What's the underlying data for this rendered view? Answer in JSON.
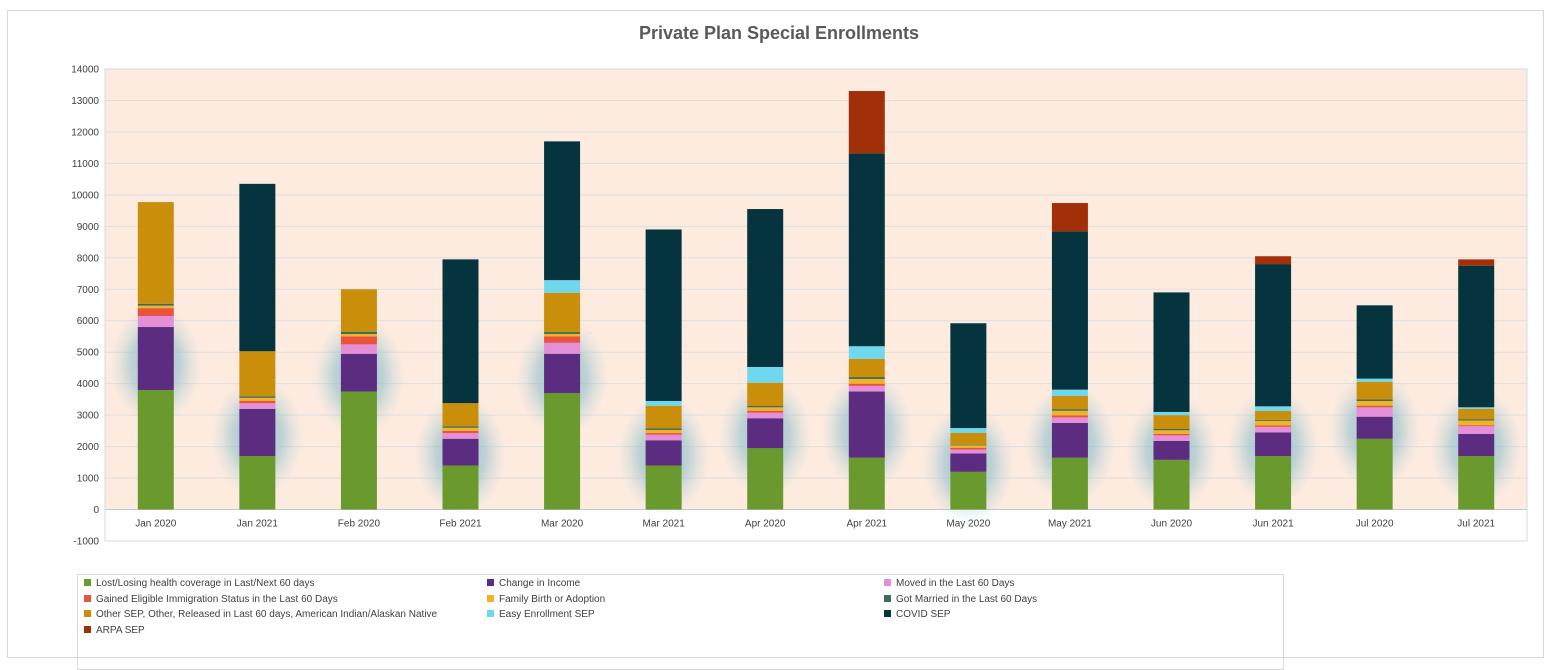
{
  "chart_data": {
    "type": "bar",
    "stacked": true,
    "title": "Private Plan Special Enrollments",
    "xlabel": "",
    "ylabel": "",
    "ylim": [
      -1000,
      14000
    ],
    "yticks": [
      -1000,
      0,
      1000,
      2000,
      3000,
      4000,
      5000,
      6000,
      7000,
      8000,
      9000,
      10000,
      11000,
      12000,
      13000,
      14000
    ],
    "grid": true,
    "legend_position": "bottom",
    "categories": [
      "Jan 2020",
      "Jan 2021",
      "Feb 2020",
      "Feb 2021",
      "Mar 2020",
      "Mar 2021",
      "Apr 2020",
      "Apr 2021",
      "May 2020",
      "May 2021",
      "Jun 2020",
      "Jun 2021",
      "Jul 2020",
      "Jul 2021"
    ],
    "series": [
      {
        "name": "Lost/Losing health coverage in Last/Next 60 days",
        "color": "#6a9a2e",
        "values": [
          3800,
          1700,
          3750,
          1400,
          3700,
          1400,
          1950,
          1650,
          1200,
          1650,
          1580,
          1700,
          2250,
          1700
        ]
      },
      {
        "name": "Change in Income",
        "color": "#5b2c7f",
        "values": [
          2000,
          1500,
          1200,
          850,
          1250,
          800,
          950,
          2100,
          580,
          1100,
          600,
          750,
          700,
          700
        ]
      },
      {
        "name": "Moved in the Last 60 Days",
        "color": "#e58fd8",
        "values": [
          350,
          180,
          300,
          180,
          350,
          180,
          180,
          180,
          130,
          180,
          180,
          180,
          300,
          250
        ]
      },
      {
        "name": "Gained Eligible Immigration Status in the Last 60 Days",
        "color": "#e8533b",
        "values": [
          250,
          70,
          250,
          70,
          200,
          50,
          60,
          70,
          50,
          60,
          40,
          40,
          50,
          30
        ]
      },
      {
        "name": "Family Birth or Adoption",
        "color": "#f0b323",
        "values": [
          80,
          100,
          80,
          100,
          80,
          100,
          110,
          150,
          80,
          150,
          120,
          150,
          150,
          150
        ]
      },
      {
        "name": "Got Married in the Last 60 Days",
        "color": "#3a6b5e",
        "values": [
          60,
          50,
          70,
          40,
          60,
          50,
          40,
          60,
          20,
          50,
          40,
          30,
          50,
          40
        ]
      },
      {
        "name": "Other SEP, Other, Released in Last 60 days, American Indian/Alaskan Native",
        "color": "#c98f0a",
        "values": [
          3230,
          1430,
          1350,
          740,
          1250,
          720,
          740,
          580,
          380,
          420,
          440,
          280,
          560,
          330
        ]
      },
      {
        "name": "Easy Enrollment SEP",
        "color": "#6fd8ee",
        "values": [
          0,
          0,
          0,
          0,
          400,
          150,
          500,
          400,
          150,
          200,
          100,
          150,
          100,
          50
        ]
      },
      {
        "name": "COVID SEP",
        "color": "#05343f",
        "values": [
          0,
          5320,
          0,
          4570,
          4410,
          5450,
          5020,
          6130,
          3330,
          5030,
          3800,
          4520,
          2330,
          4500
        ]
      },
      {
        "name": "ARPA SEP",
        "color": "#a13009",
        "values": [
          0,
          0,
          0,
          0,
          0,
          0,
          0,
          1980,
          0,
          900,
          0,
          250,
          0,
          200
        ]
      }
    ]
  }
}
